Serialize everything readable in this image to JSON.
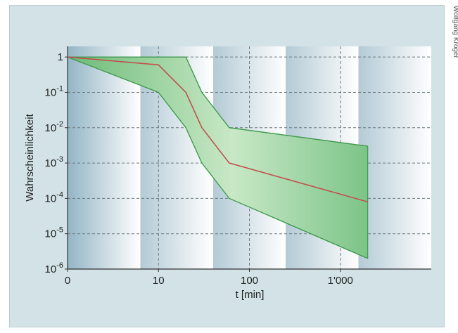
{
  "credit": "Wolfgang Kröger",
  "chart_data": {
    "type": "area",
    "title": "",
    "xlabel": "t [min]",
    "ylabel": "Wahrscheinlichkeit",
    "x_scale": "log",
    "y_scale": "log",
    "x_ticks": [
      {
        "value": 1,
        "label": "0"
      },
      {
        "value": 10,
        "label": "10"
      },
      {
        "value": 100,
        "label": "100"
      },
      {
        "value": 1000,
        "label": "1'000"
      }
    ],
    "y_ticks": [
      {
        "value": 1,
        "label": "1",
        "exp": ""
      },
      {
        "value": 0.1,
        "label": "10",
        "exp": "-1"
      },
      {
        "value": 0.01,
        "label": "10",
        "exp": "-2"
      },
      {
        "value": 0.001,
        "label": "10",
        "exp": "-3"
      },
      {
        "value": 0.0001,
        "label": "10",
        "exp": "-4"
      },
      {
        "value": 1e-05,
        "label": "10",
        "exp": "-5"
      },
      {
        "value": 1e-06,
        "label": "10",
        "exp": "-6"
      }
    ],
    "xlim": [
      1,
      10000
    ],
    "ylim": [
      1e-06,
      2
    ],
    "grid": true,
    "series": [
      {
        "role": "upper_bound",
        "x": [
          1,
          10,
          20,
          30,
          60,
          2000
        ],
        "y": [
          1,
          1,
          1,
          0.1,
          0.01,
          0.003
        ]
      },
      {
        "role": "median",
        "x": [
          1,
          10,
          20,
          30,
          60,
          2000
        ],
        "y": [
          1,
          0.6,
          0.1,
          0.01,
          0.001,
          8e-05
        ]
      },
      {
        "role": "lower_bound",
        "x": [
          1,
          10,
          20,
          30,
          60,
          2000
        ],
        "y": [
          1,
          0.1,
          0.01,
          0.001,
          0.0001,
          2e-06
        ]
      }
    ],
    "colors": {
      "band_fill": "#8fcf95",
      "band_edge": "#3f9a4c",
      "median_line": "#c0504d",
      "grid": "#6c7b80"
    }
  }
}
